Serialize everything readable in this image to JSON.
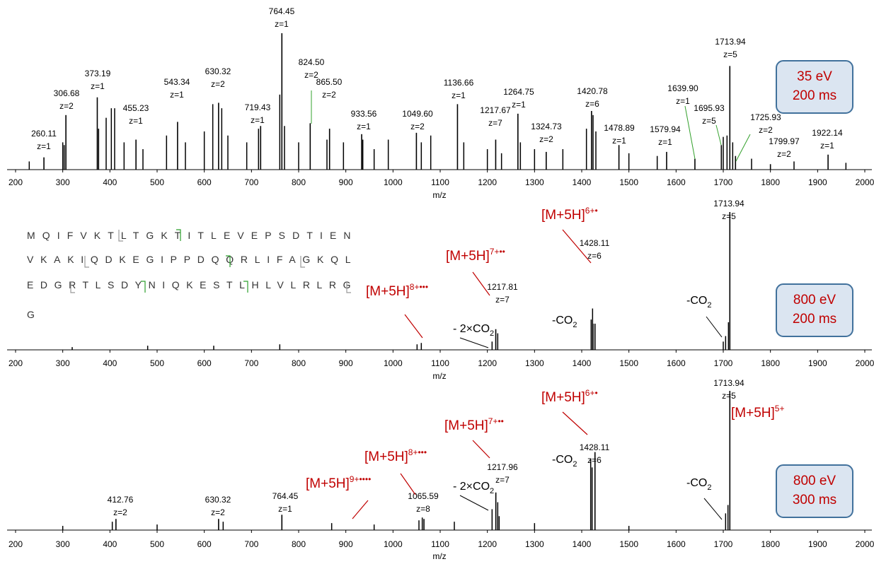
{
  "chart_data": [
    {
      "type": "stick",
      "xlabel": "m/z",
      "xlim": [
        182,
        2015
      ],
      "ylim": [
        0,
        100
      ],
      "xticks": [
        200,
        300,
        400,
        500,
        600,
        700,
        800,
        900,
        1000,
        1100,
        1200,
        1300,
        1400,
        1500,
        1600,
        1700,
        1800,
        1900,
        2000
      ],
      "x": [
        260.11,
        306.68,
        373.19,
        455.23,
        543.34,
        630.32,
        719.43,
        764.45,
        824.5,
        865.5,
        933.56,
        1049.6,
        1136.66,
        1217.67,
        1264.75,
        1324.73,
        1420.78,
        1478.89,
        1579.94,
        1639.9,
        1695.93,
        1713.94,
        1725.93,
        1799.97,
        1922.14
      ],
      "x_labels": [
        "260.11",
        "306.68",
        "373.19",
        "455.23",
        "543.34",
        "630.32",
        "719.43",
        "764.45",
        "824.50",
        "865.50",
        "933.56",
        "1049.60",
        "1136.66",
        "1217.67",
        "1264.75",
        "1324.73",
        "1420.78",
        "1478.89",
        "1579.94",
        "1639.90",
        "1695.93",
        "1713.94",
        "1725.93",
        "1799.97",
        "1922.14"
      ],
      "charges": [
        "z=1",
        "z=2",
        "z=1",
        "z=1",
        "z=1",
        "z=2",
        "z=1",
        "z=1",
        "z=2",
        "z=2",
        "z=1",
        "z=2",
        "z=1",
        "z=7",
        "z=1",
        "z=2",
        "z=6",
        "z=1",
        "z=1",
        "z=1",
        "z=5",
        "z=5",
        "z=2",
        "z=2",
        "z=1"
      ],
      "values": [
        9,
        40,
        53,
        22,
        35,
        49,
        32,
        100,
        34,
        30,
        26,
        27,
        48,
        22,
        41,
        13,
        43,
        18,
        13,
        8,
        18,
        76,
        10,
        4,
        11
      ],
      "minor_x": [
        229,
        300,
        303,
        376,
        392,
        403,
        410,
        430,
        470,
        520,
        560,
        600,
        618,
        637,
        650,
        690,
        715,
        760,
        770,
        800,
        860,
        895,
        936,
        960,
        990,
        1060,
        1080,
        1150,
        1200,
        1230,
        1270,
        1300,
        1360,
        1410,
        1424,
        1430,
        1500,
        1560,
        1700,
        1708,
        1720,
        1760,
        1850,
        1960
      ],
      "minor_values": [
        6,
        20,
        18,
        30,
        38,
        45,
        45,
        20,
        15,
        25,
        20,
        28,
        48,
        45,
        25,
        20,
        30,
        55,
        32,
        20,
        22,
        20,
        22,
        15,
        22,
        20,
        25,
        20,
        15,
        12,
        20,
        15,
        15,
        30,
        40,
        28,
        12,
        10,
        24,
        25,
        20,
        8,
        6,
        5
      ],
      "color": "#000000",
      "label_line_color": "#33a02c",
      "box": [
        "35 eV",
        "200 ms"
      ]
    },
    {
      "type": "stick",
      "xlabel": "m/z",
      "xlim": [
        182,
        2015
      ],
      "ylim": [
        0,
        100
      ],
      "xticks": [
        200,
        300,
        400,
        500,
        600,
        700,
        800,
        900,
        1000,
        1100,
        1200,
        1300,
        1400,
        1500,
        1600,
        1700,
        1800,
        1900,
        2000
      ],
      "x": [
        1217.81,
        1428.11,
        1713.94
      ],
      "x_labels": [
        "1217.81",
        "1428.11",
        "1713.94"
      ],
      "charges": [
        "z=7",
        "z=6",
        "z=5"
      ],
      "values": [
        15,
        19,
        100
      ],
      "minor_x": [
        320,
        480,
        620,
        760,
        1051,
        1060,
        1210,
        1222,
        1420,
        1423,
        1424,
        1700,
        1705,
        1711
      ],
      "minor_values": [
        2,
        3,
        3,
        4,
        4,
        5,
        6,
        12,
        22,
        30,
        19,
        6,
        10,
        20
      ],
      "color": "#000000",
      "annotations": [
        {
          "text": "[M+5H]",
          "sup": "6+•"
        },
        {
          "text": "[M+5H]",
          "sup": "7+••"
        },
        {
          "text": "[M+5H]",
          "sup": "8+•••"
        }
      ],
      "loss_labels": [
        {
          "text": "-CO",
          "sub": "2"
        },
        {
          "text": "- 2×CO",
          "sub": "2"
        },
        {
          "text": "-CO",
          "sub": "2"
        }
      ],
      "sequence": [
        "MQIFVKTLTGKTITLEVEPSDTIEN",
        "VKAKIQDKEGIPPDQQRLIFAGKQL",
        "EDGRTLSDYNIQKESTLHLVLRLRG",
        "G"
      ],
      "box": [
        "800 eV",
        "200 ms"
      ]
    },
    {
      "type": "stick",
      "xlabel": "m/z",
      "xlim": [
        182,
        2015
      ],
      "ylim": [
        0,
        100
      ],
      "xticks": [
        200,
        300,
        400,
        500,
        600,
        700,
        800,
        900,
        1000,
        1100,
        1200,
        1300,
        1400,
        1500,
        1600,
        1700,
        1800,
        1900,
        2000
      ],
      "x": [
        412.76,
        630.32,
        764.45,
        1065.59,
        1217.96,
        1428.11,
        1713.94
      ],
      "x_labels": [
        "412.76",
        "630.32",
        "764.45",
        "1065.59",
        "1217.96",
        "1428.11",
        "1713.94"
      ],
      "charges": [
        "z=2",
        "z=2",
        "z=1",
        "z=8",
        "z=7",
        "z=6",
        "z=5"
      ],
      "values": [
        8,
        8,
        11,
        8,
        27,
        56,
        100
      ],
      "minor_x": [
        300,
        405,
        500,
        640,
        870,
        960,
        1055,
        1062,
        1130,
        1210,
        1222,
        1225,
        1300,
        1419,
        1422,
        1500,
        1705,
        1710
      ],
      "minor_values": [
        3,
        6,
        4,
        6,
        5,
        4,
        7,
        9,
        6,
        15,
        20,
        10,
        5,
        51,
        45,
        3,
        12,
        18
      ],
      "color": "#000000",
      "annotations": [
        {
          "text": "[M+5H]",
          "sup": "6+•"
        },
        {
          "text": "[M+5H]",
          "sup": "5+"
        },
        {
          "text": "[M+5H]",
          "sup": "7+••"
        },
        {
          "text": "[M+5H]",
          "sup": "8+•••"
        },
        {
          "text": "[M+5H]",
          "sup": "9+••••"
        }
      ],
      "loss_labels": [
        {
          "text": "-CO",
          "sub": "2"
        },
        {
          "text": "- 2×CO",
          "sub": "2"
        },
        {
          "text": "-CO",
          "sub": "2"
        }
      ],
      "box": [
        "800 eV",
        "300 ms"
      ]
    }
  ]
}
